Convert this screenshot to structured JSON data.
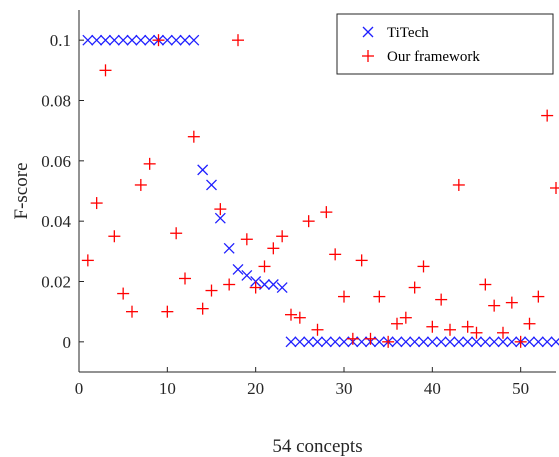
{
  "chart_data": {
    "type": "scatter",
    "title": "",
    "xlabel": "54 concepts",
    "ylabel": "F-score",
    "xlim": [
      0,
      54
    ],
    "ylim": [
      -0.01,
      0.11
    ],
    "xticks": [
      0,
      10,
      20,
      30,
      40,
      50
    ],
    "xtick_labels": [
      "0",
      "10",
      "20",
      "30",
      "40",
      "50"
    ],
    "yticks": [
      0,
      0.02,
      0.04,
      0.06,
      0.08,
      0.1
    ],
    "ytick_labels": [
      "0",
      "0.02",
      "0.04",
      "0.06",
      "0.08",
      "0.1"
    ],
    "grid": false,
    "legend_position": "top-right",
    "series": [
      {
        "name": "TiTech",
        "marker": "x",
        "color": "#1f1fff",
        "x": [
          1,
          2,
          3,
          4,
          5,
          6,
          7,
          8,
          9,
          10,
          11,
          12,
          13,
          14,
          15,
          16,
          17,
          18,
          19,
          20,
          21,
          22,
          23,
          24,
          25,
          26,
          27,
          28,
          29,
          30,
          31,
          32,
          33,
          34,
          35,
          36,
          37,
          38,
          39,
          40,
          41,
          42,
          43,
          44,
          45,
          46,
          47,
          48,
          49,
          50,
          51,
          52,
          53,
          54
        ],
        "y": [
          0.1,
          0.1,
          0.1,
          0.1,
          0.1,
          0.1,
          0.1,
          0.1,
          0.1,
          0.1,
          0.1,
          0.1,
          0.1,
          0.057,
          0.052,
          0.041,
          0.031,
          0.024,
          0.022,
          0.02,
          0.019,
          0.019,
          0.018,
          0,
          0,
          0,
          0,
          0,
          0,
          0,
          0,
          0,
          0,
          0,
          0,
          0,
          0,
          0,
          0,
          0,
          0,
          0,
          0,
          0,
          0,
          0,
          0,
          0,
          0,
          0,
          0,
          0,
          0,
          0
        ]
      },
      {
        "name": "Our framework",
        "marker": "+",
        "color": "#ff0000",
        "x": [
          1,
          2,
          3,
          4,
          5,
          6,
          7,
          8,
          9,
          10,
          11,
          12,
          13,
          14,
          15,
          16,
          17,
          18,
          19,
          20,
          21,
          22,
          23,
          24,
          25,
          26,
          27,
          28,
          29,
          30,
          31,
          32,
          33,
          34,
          35,
          36,
          37,
          38,
          39,
          40,
          41,
          42,
          43,
          44,
          45,
          46,
          47,
          48,
          49,
          50,
          51,
          52,
          53,
          54
        ],
        "y": [
          0.027,
          0.046,
          0.09,
          0.035,
          0.016,
          0.01,
          0.052,
          0.059,
          0.1,
          0.01,
          0.036,
          0.021,
          0.068,
          0.011,
          0.017,
          0.044,
          0.019,
          0.1,
          0.034,
          0.018,
          0.025,
          0.031,
          0.035,
          0.009,
          0.008,
          0.04,
          0.004,
          0.043,
          0.029,
          0.015,
          0.001,
          0.027,
          0.001,
          0.015,
          0.0,
          0.006,
          0.008,
          0.018,
          0.025,
          0.005,
          0.014,
          0.004,
          0.052,
          0.005,
          0.003,
          0.019,
          0.012,
          0.003,
          0.013,
          0.0,
          0.006,
          0.015,
          0.075,
          0.051
        ]
      }
    ]
  }
}
